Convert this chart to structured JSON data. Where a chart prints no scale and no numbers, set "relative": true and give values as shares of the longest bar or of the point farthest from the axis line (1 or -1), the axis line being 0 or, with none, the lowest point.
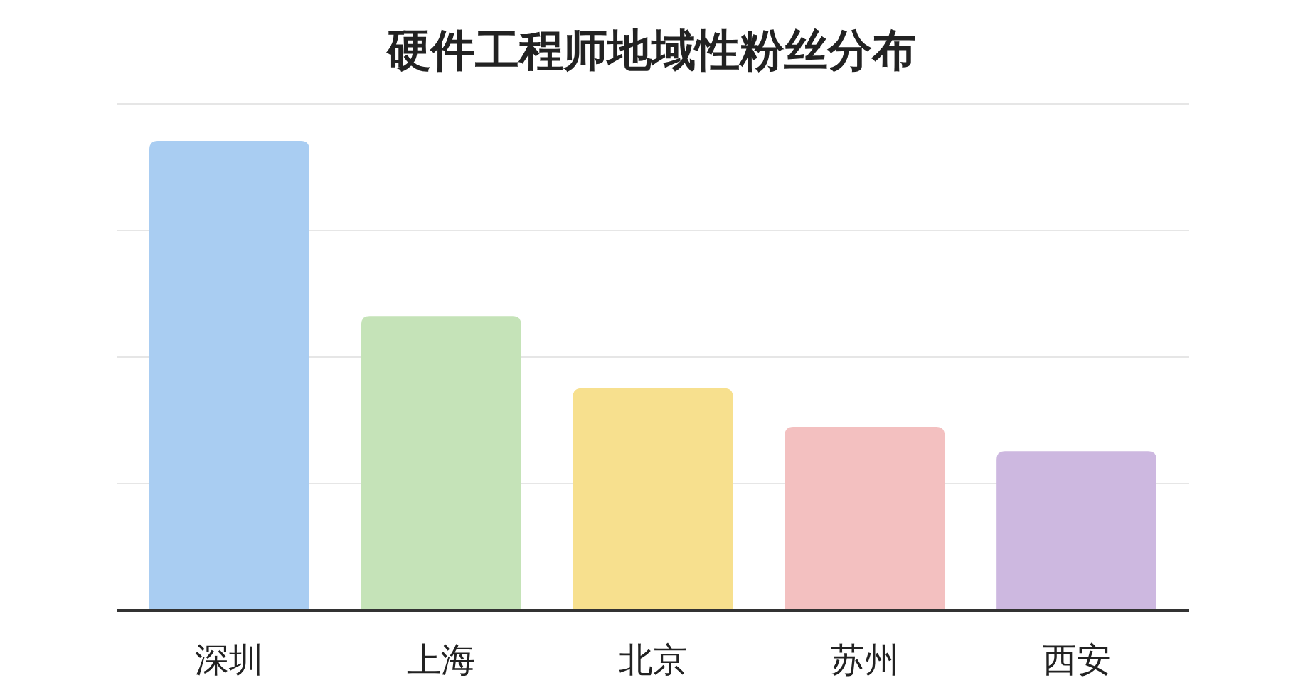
{
  "chart_data": {
    "type": "bar",
    "title": "硬件工程师地域性粉丝分布",
    "categories": [
      "深圳",
      "上海",
      "北京",
      "苏州",
      "西安"
    ],
    "values": [
      1,
      0.627,
      0.473,
      0.391,
      0.339
    ],
    "colors": [
      "#a9cdf2",
      "#c5e3b8",
      "#f7e08e",
      "#f3c0c0",
      "#cdb8e0"
    ],
    "relative": true,
    "grid": "y"
  }
}
